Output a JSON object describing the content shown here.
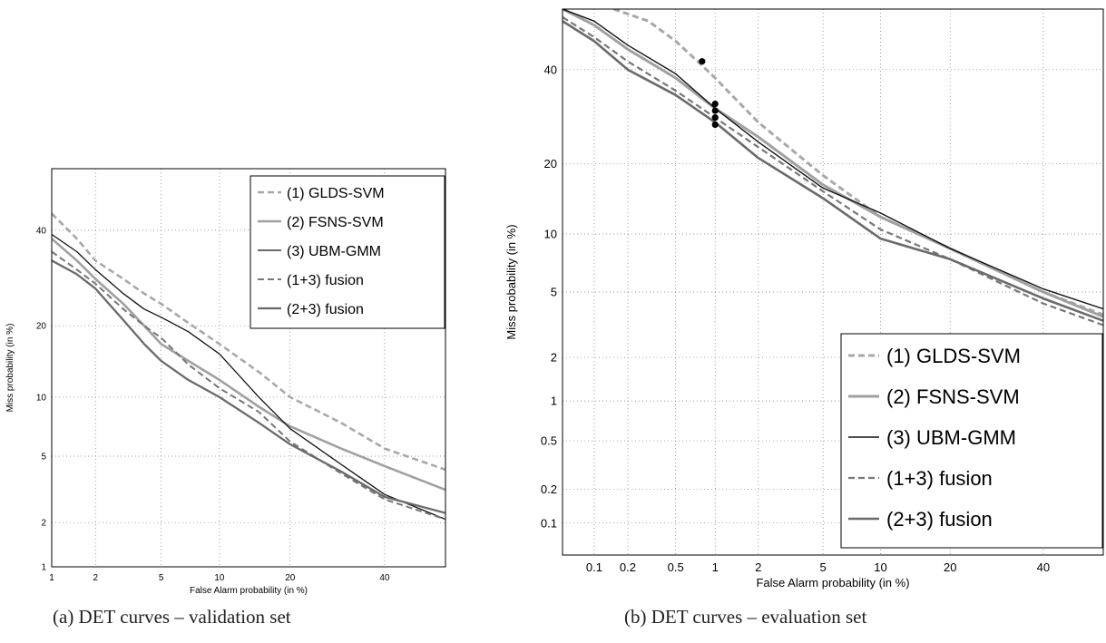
{
  "chart_data": [
    {
      "id": "a",
      "type": "line",
      "caption": "(a) DET curves – validation set",
      "xlabel": "False Alarm probability (in %)",
      "ylabel": "Miss probability (in %)",
      "xlim": [
        1,
        55
      ],
      "ylim": [
        1,
        55
      ],
      "scale": "normal-deviate",
      "grid": true,
      "legend_position": "top-right",
      "xticks": [
        1,
        2,
        5,
        10,
        20,
        40
      ],
      "yticks": [
        1,
        2,
        5,
        10,
        20,
        40
      ],
      "series": [
        {
          "name": "(1) GLDS-SVM",
          "color": "#a8a8a8",
          "dash": true,
          "width": 2.6,
          "points": [
            [
              1,
              44
            ],
            [
              1.5,
              38
            ],
            [
              2,
              33
            ],
            [
              3,
              29
            ],
            [
              4,
              26
            ],
            [
              5,
              24
            ],
            [
              7,
              20.5
            ],
            [
              10,
              17
            ],
            [
              15,
              13
            ],
            [
              20,
              10
            ],
            [
              30,
              7.5
            ],
            [
              40,
              5.5
            ],
            [
              55,
              4.2
            ]
          ]
        },
        {
          "name": "(2) FSNS-SVM",
          "color": "#a0a0a0",
          "dash": false,
          "width": 2.6,
          "points": [
            [
              1,
              38
            ],
            [
              1.5,
              33
            ],
            [
              2,
              29
            ],
            [
              3,
              24
            ],
            [
              4,
              20
            ],
            [
              5,
              17
            ],
            [
              7,
              14.5
            ],
            [
              10,
              12
            ],
            [
              15,
              9
            ],
            [
              20,
              7.2
            ],
            [
              30,
              5.5
            ],
            [
              40,
              4.4
            ],
            [
              55,
              3.2
            ]
          ]
        },
        {
          "name": "(3) UBM-GMM",
          "color": "#111111",
          "dash": false,
          "width": 1.3,
          "points": [
            [
              1,
              39
            ],
            [
              1.5,
              35
            ],
            [
              2,
              31
            ],
            [
              3,
              26
            ],
            [
              4,
              23
            ],
            [
              5,
              21.5
            ],
            [
              7,
              19
            ],
            [
              10,
              15.5
            ],
            [
              15,
              10
            ],
            [
              20,
              7
            ],
            [
              30,
              4.5
            ],
            [
              40,
              3
            ],
            [
              55,
              2.1
            ]
          ]
        },
        {
          "name": "(1+3) fusion",
          "color": "#777777",
          "dash": true,
          "width": 2.0,
          "points": [
            [
              1,
              35
            ],
            [
              1.5,
              31
            ],
            [
              2,
              28
            ],
            [
              3,
              23
            ],
            [
              4,
              20
            ],
            [
              5,
              18
            ],
            [
              7,
              14
            ],
            [
              10,
              11
            ],
            [
              15,
              8.5
            ],
            [
              20,
              6
            ],
            [
              30,
              4
            ],
            [
              40,
              2.8
            ],
            [
              55,
              2.1
            ]
          ]
        },
        {
          "name": "(2+3) fusion",
          "color": "#6a6a6a",
          "dash": false,
          "width": 2.3,
          "points": [
            [
              1,
              33
            ],
            [
              1.5,
              30
            ],
            [
              2,
              27
            ],
            [
              3,
              21
            ],
            [
              4,
              17
            ],
            [
              5,
              14.5
            ],
            [
              7,
              12
            ],
            [
              10,
              10
            ],
            [
              15,
              7.5
            ],
            [
              20,
              5.8
            ],
            [
              30,
              4.1
            ],
            [
              40,
              2.9
            ],
            [
              55,
              2.3
            ]
          ]
        }
      ]
    },
    {
      "id": "b",
      "type": "line",
      "caption": "(b) DET curves – evaluation set",
      "xlabel": "False Alarm probability (in %)",
      "ylabel": "Miss probability (in %)",
      "xlim": [
        0.05,
        55
      ],
      "ylim": [
        0.05,
        55
      ],
      "scale": "normal-deviate",
      "grid": true,
      "legend_position": "bottom-right",
      "xticks": [
        0.1,
        0.2,
        0.5,
        1,
        2,
        5,
        10,
        20,
        40
      ],
      "yticks": [
        0.1,
        0.2,
        0.5,
        1,
        2,
        5,
        10,
        20,
        40
      ],
      "series": [
        {
          "name": "(1) GLDS-SVM",
          "color": "#a8a8a8",
          "dash": true,
          "width": 3.0,
          "points": [
            [
              0.15,
              55
            ],
            [
              0.3,
              52
            ],
            [
              0.5,
              47
            ],
            [
              0.8,
              41
            ],
            [
              1,
              38
            ],
            [
              2,
              28
            ],
            [
              5,
              18
            ],
            [
              10,
              12
            ],
            [
              20,
              8.5
            ],
            [
              40,
              5
            ],
            [
              55,
              3.7
            ]
          ]
        },
        {
          "name": "(2) FSNS-SVM",
          "color": "#a0a0a0",
          "dash": false,
          "width": 3.0,
          "points": [
            [
              0.05,
              55
            ],
            [
              0.1,
              51
            ],
            [
              0.2,
              45
            ],
            [
              0.5,
              38
            ],
            [
              1,
              31
            ],
            [
              2,
              25
            ],
            [
              5,
              16.5
            ],
            [
              10,
              12
            ],
            [
              20,
              8.5
            ],
            [
              40,
              5
            ],
            [
              55,
              3.6
            ]
          ]
        },
        {
          "name": "(3) UBM-GMM",
          "color": "#111111",
          "dash": false,
          "width": 1.4,
          "points": [
            [
              0.05,
              55
            ],
            [
              0.1,
              52
            ],
            [
              0.2,
              46
            ],
            [
              0.5,
              39
            ],
            [
              1,
              31
            ],
            [
              2,
              24
            ],
            [
              5,
              16
            ],
            [
              10,
              12.5
            ],
            [
              20,
              8.5
            ],
            [
              40,
              5.2
            ],
            [
              55,
              4
            ]
          ]
        },
        {
          "name": "(1+3) fusion",
          "color": "#777777",
          "dash": true,
          "width": 2.2,
          "points": [
            [
              0.05,
              53
            ],
            [
              0.1,
              48
            ],
            [
              0.2,
              42
            ],
            [
              0.5,
              35
            ],
            [
              1,
              29
            ],
            [
              2,
              23
            ],
            [
              5,
              15.5
            ],
            [
              10,
              10.5
            ],
            [
              20,
              7.5
            ],
            [
              40,
              4.3
            ],
            [
              55,
              3.2
            ]
          ]
        },
        {
          "name": "(2+3) fusion",
          "color": "#6a6a6a",
          "dash": false,
          "width": 2.6,
          "points": [
            [
              0.05,
              52
            ],
            [
              0.1,
              47
            ],
            [
              0.2,
              40
            ],
            [
              0.5,
              34
            ],
            [
              1,
              28
            ],
            [
              2,
              21
            ],
            [
              5,
              14.5
            ],
            [
              10,
              9.5
            ],
            [
              20,
              7.5
            ],
            [
              40,
              4.6
            ],
            [
              55,
              3.4
            ]
          ]
        }
      ],
      "markers": [
        [
          0.8,
          42
        ],
        [
          1,
          32
        ],
        [
          1,
          30.5
        ],
        [
          1,
          29
        ],
        [
          1,
          27.5
        ]
      ]
    }
  ]
}
